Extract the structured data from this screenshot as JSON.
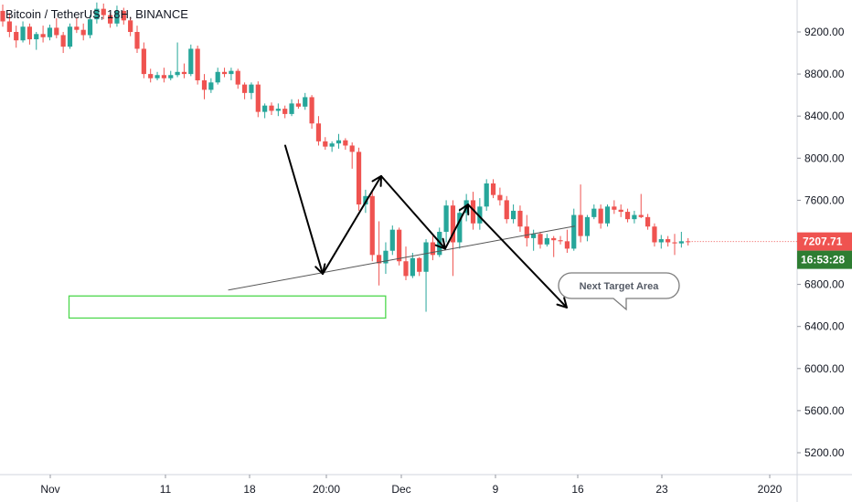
{
  "header": {
    "title": "Bitcoin / TetherUS, 18H, BINANCE"
  },
  "chart_data": {
    "type": "candlestick",
    "symbol": "Bitcoin / TetherUS",
    "interval": "18H",
    "exchange": "BINANCE",
    "ylim": [
      5000,
      9600
    ],
    "y_ticks": [
      "9200.00",
      "8800.00",
      "8400.00",
      "8000.00",
      "7600.00",
      "6800.00",
      "6400.00",
      "6000.00",
      "5600.00",
      "5200.00"
    ],
    "x_ticks": [
      "Nov",
      "11",
      "18",
      "20:00",
      "Dec",
      "9",
      "16",
      "23",
      "2020"
    ],
    "last_price": "7207.71",
    "countdown": "16:53:28",
    "colors": {
      "up": "#26a69a",
      "down": "#ef5350",
      "price_tag": "#ef5350",
      "countdown_tag": "#2e7d32",
      "target_box": "#4cd84c",
      "arrows": "#000000",
      "trendline": "#555555"
    },
    "candles": [
      [
        9400,
        9460,
        9250,
        9300
      ],
      [
        9300,
        9380,
        9150,
        9200
      ],
      [
        9200,
        9260,
        9050,
        9120
      ],
      [
        9120,
        9300,
        9100,
        9250
      ],
      [
        9250,
        9280,
        9080,
        9130
      ],
      [
        9130,
        9200,
        9030,
        9180
      ],
      [
        9180,
        9260,
        9100,
        9150
      ],
      [
        9150,
        9270,
        9120,
        9240
      ],
      [
        9240,
        9330,
        9140,
        9170
      ],
      [
        9170,
        9200,
        9000,
        9060
      ],
      [
        9060,
        9280,
        9040,
        9250
      ],
      [
        9250,
        9330,
        9190,
        9220
      ],
      [
        9220,
        9280,
        9120,
        9170
      ],
      [
        9170,
        9360,
        9140,
        9320
      ],
      [
        9320,
        9480,
        9280,
        9420
      ],
      [
        9420,
        9470,
        9320,
        9360
      ],
      [
        9360,
        9380,
        9240,
        9280
      ],
      [
        9280,
        9450,
        9250,
        9400
      ],
      [
        9400,
        9430,
        9270,
        9310
      ],
      [
        9310,
        9340,
        9160,
        9200
      ],
      [
        9200,
        9260,
        9000,
        9040
      ],
      [
        9040,
        9100,
        8760,
        8800
      ],
      [
        8800,
        8850,
        8720,
        8760
      ],
      [
        8760,
        8820,
        8740,
        8790
      ],
      [
        8790,
        8860,
        8720,
        8760
      ],
      [
        8760,
        8830,
        8740,
        8790
      ],
      [
        8790,
        9100,
        8770,
        8820
      ],
      [
        8820,
        8900,
        8760,
        8800
      ],
      [
        8800,
        9080,
        8780,
        9040
      ],
      [
        9040,
        9070,
        8700,
        8740
      ],
      [
        8740,
        8800,
        8560,
        8650
      ],
      [
        8650,
        8760,
        8620,
        8720
      ],
      [
        8720,
        8860,
        8700,
        8820
      ],
      [
        8820,
        8860,
        8770,
        8800
      ],
      [
        8800,
        8860,
        8740,
        8830
      ],
      [
        8830,
        8850,
        8660,
        8700
      ],
      [
        8700,
        8720,
        8560,
        8620
      ],
      [
        8620,
        8720,
        8560,
        8700
      ],
      [
        8700,
        8730,
        8390,
        8440
      ],
      [
        8440,
        8520,
        8380,
        8500
      ],
      [
        8500,
        8530,
        8410,
        8450
      ],
      [
        8450,
        8520,
        8400,
        8470
      ],
      [
        8470,
        8500,
        8380,
        8420
      ],
      [
        8420,
        8560,
        8400,
        8520
      ],
      [
        8520,
        8560,
        8470,
        8490
      ],
      [
        8490,
        8620,
        8460,
        8580
      ],
      [
        8580,
        8600,
        8280,
        8330
      ],
      [
        8330,
        8400,
        8120,
        8160
      ],
      [
        8160,
        8200,
        8080,
        8110
      ],
      [
        8110,
        8160,
        8060,
        8140
      ],
      [
        8140,
        8230,
        8090,
        8170
      ],
      [
        8170,
        8190,
        8080,
        8120
      ],
      [
        8120,
        8150,
        7900,
        8060
      ],
      [
        8060,
        8100,
        7500,
        7560
      ],
      [
        7560,
        7700,
        7480,
        7640
      ],
      [
        7640,
        7700,
        7020,
        7080
      ],
      [
        7080,
        7400,
        6790,
        7000
      ],
      [
        7000,
        7200,
        6900,
        7120
      ],
      [
        7120,
        7360,
        7080,
        7320
      ],
      [
        7320,
        7340,
        6980,
        7020
      ],
      [
        7020,
        7160,
        6840,
        6880
      ],
      [
        6880,
        7100,
        6860,
        7050
      ],
      [
        7050,
        7060,
        6880,
        6920
      ],
      [
        6920,
        7230,
        6540,
        7200
      ],
      [
        7200,
        7260,
        7030,
        7080
      ],
      [
        7080,
        7340,
        7060,
        7300
      ],
      [
        7300,
        7600,
        7200,
        7550
      ],
      [
        7550,
        7600,
        6880,
        7200
      ],
      [
        7200,
        7520,
        7140,
        7480
      ],
      [
        7480,
        7660,
        7400,
        7600
      ],
      [
        7600,
        7680,
        7320,
        7380
      ],
      [
        7380,
        7620,
        7320,
        7540
      ],
      [
        7540,
        7800,
        7500,
        7760
      ],
      [
        7760,
        7800,
        7620,
        7650
      ],
      [
        7650,
        7720,
        7550,
        7600
      ],
      [
        7600,
        7640,
        7380,
        7420
      ],
      [
        7420,
        7560,
        7380,
        7500
      ],
      [
        7500,
        7550,
        7300,
        7350
      ],
      [
        7350,
        7460,
        7160,
        7240
      ],
      [
        7240,
        7320,
        7120,
        7280
      ],
      [
        7280,
        7300,
        7140,
        7180
      ],
      [
        7180,
        7280,
        7160,
        7240
      ],
      [
        7240,
        7260,
        7060,
        7220
      ],
      [
        7220,
        7260,
        7180,
        7210
      ],
      [
        7210,
        7320,
        7100,
        7140
      ],
      [
        7140,
        7520,
        7120,
        7460
      ],
      [
        7460,
        7750,
        7200,
        7260
      ],
      [
        7260,
        7460,
        7210,
        7440
      ],
      [
        7440,
        7560,
        7420,
        7520
      ],
      [
        7520,
        7560,
        7330,
        7380
      ],
      [
        7380,
        7560,
        7350,
        7540
      ],
      [
        7540,
        7600,
        7470,
        7510
      ],
      [
        7510,
        7560,
        7440,
        7490
      ],
      [
        7490,
        7520,
        7390,
        7420
      ],
      [
        7420,
        7500,
        7380,
        7460
      ],
      [
        7460,
        7660,
        7430,
        7440
      ],
      [
        7440,
        7470,
        7320,
        7350
      ],
      [
        7350,
        7380,
        7160,
        7200
      ],
      [
        7200,
        7270,
        7140,
        7230
      ],
      [
        7230,
        7260,
        7160,
        7200
      ],
      [
        7200,
        7280,
        7080,
        7190
      ],
      [
        7190,
        7300,
        7150,
        7210
      ],
      [
        7210,
        7240,
        7170,
        7208
      ]
    ],
    "annotations": {
      "trendline": [
        [
          14.5,
          6720
        ],
        [
          52.5,
          7380
        ]
      ],
      "zigzag_arrows": [
        [
          [
            21,
            8120
          ],
          [
            25.6,
            6900
          ]
        ],
        [
          [
            25.6,
            6900
          ],
          [
            29.6,
            7830
          ]
        ],
        [
          [
            29.6,
            7830
          ],
          [
            34.8,
            7140
          ]
        ],
        [
          [
            34.8,
            7140
          ],
          [
            36.5,
            7560
          ]
        ],
        [
          [
            36.5,
            7560
          ],
          [
            44.6,
            6580
          ]
        ]
      ],
      "arrow2": [
        [
          40,
          7300
        ],
        [
          42,
          6900
        ]
      ],
      "target_box": {
        "x0": 10,
        "x1": 51,
        "y_low": 6480,
        "y_high": 6690
      },
      "callout": {
        "text": "Next Target Area",
        "x": 47.5,
        "y": 6840
      }
    }
  }
}
